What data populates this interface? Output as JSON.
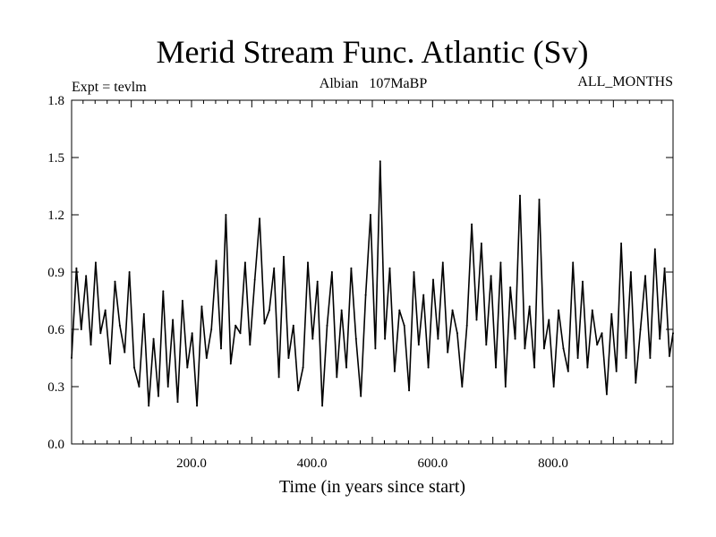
{
  "chart_data": {
    "type": "line",
    "title": "Merid Stream Func. Atlantic (Sv)",
    "subtitle_left": "Expt = tevlm",
    "subtitle_center": "Albian   107MaBP",
    "subtitle_right": "ALL_MONTHS",
    "xlabel": "Time (in years since start)",
    "ylabel": "",
    "xlim": [
      1,
      999
    ],
    "ylim": [
      0.0,
      1.8
    ],
    "x_ticks": [
      200.0,
      400.0,
      600.0,
      800.0
    ],
    "x_tick_labels": [
      "200.0",
      "400.0",
      "600.0",
      "800.0"
    ],
    "y_ticks": [
      0.0,
      0.3,
      0.6,
      0.9,
      1.2,
      1.5,
      1.8
    ],
    "y_tick_labels": [
      "0.0",
      "0.3",
      "0.6",
      "0.9",
      "1.2",
      "1.5",
      "1.8"
    ],
    "grid": false,
    "series": [
      {
        "name": "Merid Stream Func. Atlantic",
        "color": "#000000",
        "x": [
          1,
          9,
          17,
          25,
          33,
          41,
          49,
          57,
          65,
          73,
          81,
          89,
          97,
          105,
          113,
          121,
          129,
          137,
          145,
          153,
          161,
          169,
          177,
          185,
          193,
          201,
          209,
          217,
          225,
          233,
          241,
          249,
          257,
          265,
          273,
          281,
          289,
          297,
          305,
          313,
          321,
          329,
          337,
          345,
          353,
          361,
          369,
          377,
          385,
          393,
          401,
          409,
          417,
          425,
          433,
          441,
          449,
          457,
          465,
          473,
          481,
          489,
          497,
          505,
          513,
          521,
          529,
          537,
          545,
          553,
          561,
          569,
          577,
          585,
          593,
          601,
          609,
          617,
          625,
          633,
          641,
          649,
          657,
          665,
          673,
          681,
          689,
          697,
          705,
          713,
          721,
          729,
          737,
          745,
          753,
          761,
          769,
          777,
          785,
          793,
          801,
          809,
          817,
          825,
          833,
          841,
          849,
          857,
          865,
          873,
          881,
          889,
          897,
          905,
          913,
          921,
          929,
          937,
          945,
          953,
          961,
          969,
          977,
          985,
          993,
          999
        ],
        "values": [
          0.45,
          0.92,
          0.6,
          0.88,
          0.52,
          0.95,
          0.58,
          0.7,
          0.42,
          0.85,
          0.62,
          0.48,
          0.9,
          0.4,
          0.3,
          0.68,
          0.2,
          0.55,
          0.25,
          0.8,
          0.3,
          0.65,
          0.22,
          0.75,
          0.4,
          0.58,
          0.2,
          0.72,
          0.45,
          0.6,
          0.96,
          0.5,
          1.2,
          0.42,
          0.62,
          0.58,
          0.95,
          0.52,
          0.86,
          1.18,
          0.63,
          0.7,
          0.92,
          0.35,
          0.98,
          0.45,
          0.62,
          0.28,
          0.4,
          0.95,
          0.55,
          0.85,
          0.2,
          0.62,
          0.9,
          0.35,
          0.7,
          0.4,
          0.92,
          0.55,
          0.25,
          0.78,
          1.2,
          0.5,
          1.48,
          0.55,
          0.92,
          0.38,
          0.7,
          0.62,
          0.28,
          0.9,
          0.52,
          0.78,
          0.4,
          0.86,
          0.55,
          0.95,
          0.48,
          0.7,
          0.58,
          0.3,
          0.62,
          1.15,
          0.65,
          1.05,
          0.52,
          0.88,
          0.4,
          0.95,
          0.3,
          0.82,
          0.55,
          1.3,
          0.5,
          0.72,
          0.4,
          1.28,
          0.5,
          0.65,
          0.3,
          0.7,
          0.5,
          0.38,
          0.95,
          0.45,
          0.85,
          0.4,
          0.7,
          0.52,
          0.58,
          0.26,
          0.68,
          0.38,
          1.05,
          0.45,
          0.9,
          0.32,
          0.6,
          0.88,
          0.45,
          1.02,
          0.55,
          0.92,
          0.46,
          0.58
        ]
      }
    ]
  }
}
